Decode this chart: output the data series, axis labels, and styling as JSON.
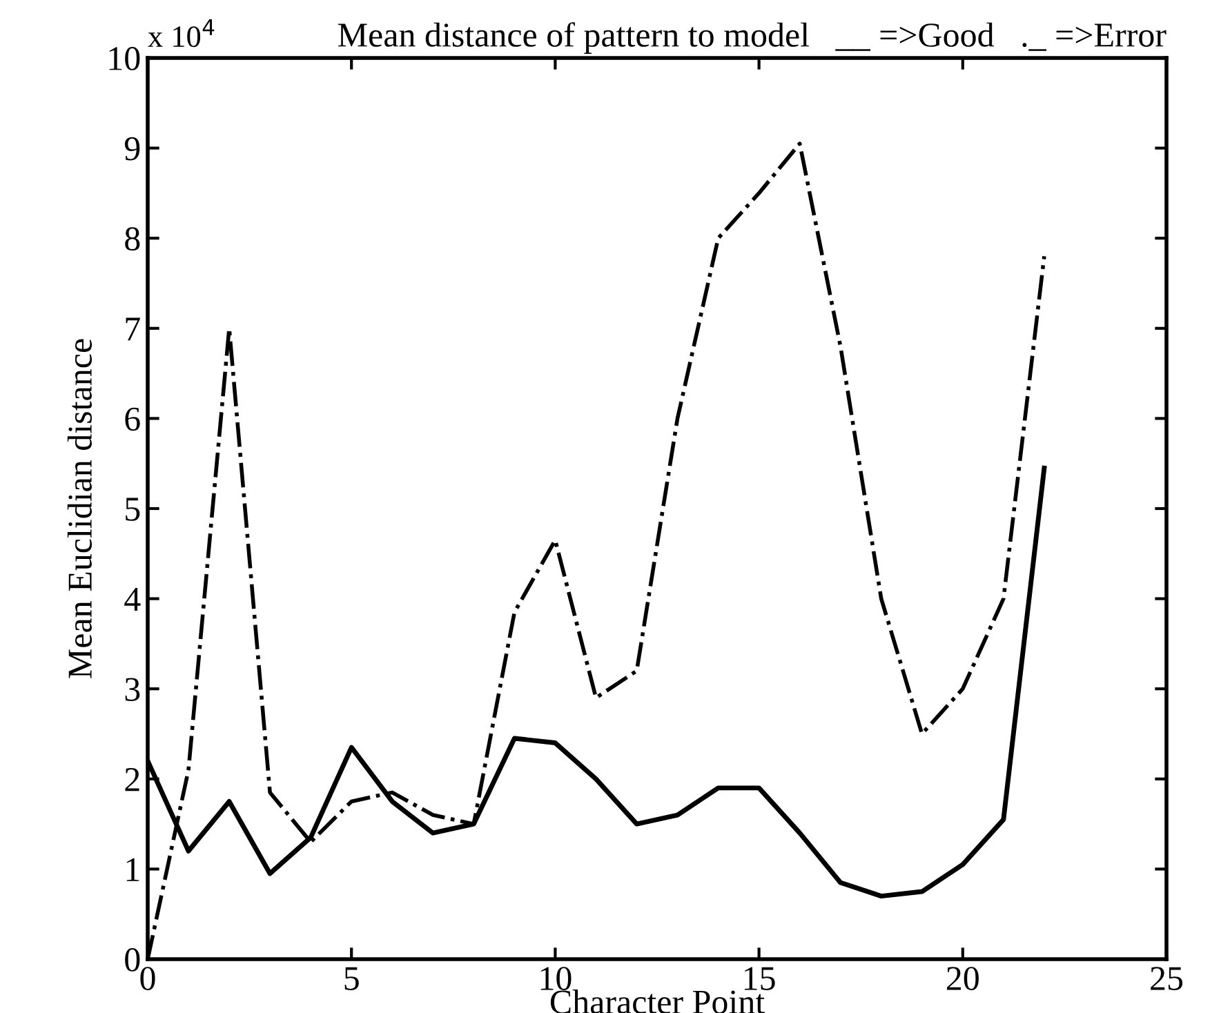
{
  "chart_data": {
    "type": "line",
    "title": "Mean distance of pattern to model   __ =>Good   ._ =>Error",
    "xlabel": "Character Point",
    "ylabel": "Mean Euclidian distance",
    "annotations": [
      "x 10$^{4}$"
    ],
    "x": [
      0,
      1,
      2,
      3,
      4,
      5,
      6,
      7,
      8,
      9,
      10,
      11,
      12,
      13,
      14,
      15,
      16,
      17,
      18,
      19,
      20,
      21,
      22
    ],
    "series": [
      {
        "color": "#000000",
        "line_style": "solid",
        "values": [
          2.2,
          1.2,
          1.75,
          0.95,
          1.35,
          2.35,
          1.75,
          1.4,
          1.5,
          2.45,
          2.4,
          2.0,
          1.5,
          1.6,
          1.9,
          1.9,
          1.4,
          0.85,
          0.7,
          0.75,
          1.05,
          1.55,
          5.45
        ]
      },
      {
        "color": "#000000",
        "line_style": "dashdot",
        "values": [
          0,
          2.1,
          7.0,
          1.85,
          1.3,
          1.75,
          1.85,
          1.6,
          1.5,
          3.85,
          4.65,
          2.9,
          3.2,
          6.0,
          8.0,
          8.5,
          9.05,
          6.8,
          4.0,
          2.5,
          3.0,
          4.0,
          7.8
        ]
      }
    ],
    "xlim": [
      0,
      25
    ],
    "xticks": [
      0,
      5,
      10,
      15,
      20,
      25
    ],
    "ylim": [
      0,
      10
    ],
    "yticks": [
      0,
      1,
      2,
      3,
      4,
      5,
      6,
      7,
      8,
      9,
      10
    ],
    "grid": false,
    "legend": false
  }
}
